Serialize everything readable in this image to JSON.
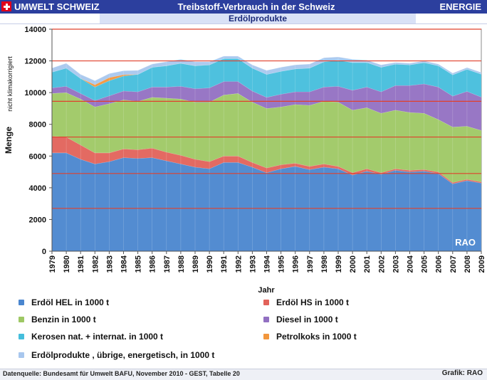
{
  "header": {
    "brand": "UMWELT SCHWEIZ",
    "title": "Treibstoff-Verbrauch in der Schweiz",
    "section": "ENERGIE",
    "subtitle": "Erdölprodukte"
  },
  "footer": {
    "source": "Datenquelle: Bundesamt für Umwelt BAFU, November 2010 - GEST, Tabelle 20",
    "credit": "Grafik: RAO"
  },
  "colors": {
    "brand_bar": "#2c3f9e",
    "hel": "#4a86cf",
    "hs": "#e2625a",
    "benzin": "#9ec864",
    "diesel": "#9270c2",
    "kerosen": "#45bedc",
    "petrolkoks": "#f2963c",
    "uebrige": "#a8c7ee",
    "ref_lines": "#e0402c"
  },
  "chart_data": {
    "type": "area",
    "stacked": true,
    "title": "Erdölprodukte",
    "ylabel": "Menge",
    "ylabel_note": "nicht klimakorrigiert",
    "xlabel": "Jahr",
    "ylim": [
      0,
      14000
    ],
    "yticks": [
      0,
      2000,
      4000,
      6000,
      8000,
      10000,
      12000,
      14000
    ],
    "watermark": "RAO",
    "reference_lines": [
      2700,
      4900,
      7200,
      9450,
      12000,
      14000
    ],
    "x": [
      "1979",
      "1980",
      "1981",
      "1982",
      "1983",
      "1984",
      "1985",
      "1986",
      "1987",
      "1988",
      "1989",
      "1990",
      "1991",
      "1992",
      "1993",
      "1994",
      "1995",
      "1996",
      "1997",
      "1998",
      "1999",
      "2000",
      "2001",
      "2002",
      "2003",
      "2004",
      "2005",
      "2006",
      "2007",
      "2008",
      "2009"
    ],
    "series": [
      {
        "name": "Erdöl HEL in 1000 t",
        "values": [
          6200,
          6200,
          5800,
          5500,
          5650,
          5900,
          5850,
          5900,
          5700,
          5500,
          5300,
          5200,
          5600,
          5600,
          5300,
          4950,
          5200,
          5350,
          5150,
          5300,
          5200,
          4800,
          5050,
          4850,
          5100,
          5000,
          5050,
          4900,
          4250,
          4450,
          4300
        ]
      },
      {
        "name": "Erdöl HS in 1000 t",
        "values": [
          1050,
          1000,
          900,
          700,
          550,
          550,
          550,
          600,
          550,
          550,
          500,
          450,
          400,
          400,
          300,
          300,
          250,
          200,
          200,
          200,
          150,
          150,
          150,
          100,
          100,
          100,
          100,
          100,
          80,
          80,
          70
        ]
      },
      {
        "name": "Benzin in 1000 t",
        "values": [
          2700,
          2800,
          2900,
          2900,
          3100,
          3100,
          3050,
          3200,
          3400,
          3550,
          3600,
          3750,
          3850,
          3950,
          3800,
          3750,
          3650,
          3700,
          3850,
          3950,
          4050,
          3950,
          3850,
          3750,
          3700,
          3650,
          3550,
          3300,
          3500,
          3350,
          3250
        ]
      },
      {
        "name": "Diesel in 1000 t",
        "values": [
          350,
          400,
          350,
          400,
          500,
          550,
          600,
          650,
          700,
          800,
          850,
          900,
          850,
          750,
          700,
          700,
          800,
          800,
          850,
          900,
          1000,
          1250,
          1300,
          1350,
          1550,
          1700,
          1850,
          2050,
          1950,
          2200,
          2100
        ]
      },
      {
        "name": "Kerosen nat.  + internat. in 1000 t",
        "values": [
          1000,
          1150,
          950,
          850,
          950,
          950,
          1100,
          1250,
          1350,
          1450,
          1450,
          1450,
          1450,
          1450,
          1450,
          1450,
          1450,
          1450,
          1500,
          1600,
          1650,
          1750,
          1550,
          1550,
          1350,
          1300,
          1350,
          1350,
          1350,
          1400,
          1450
        ]
      },
      {
        "name": "Petrolkoks in 1000 t",
        "values": [
          0,
          0,
          0,
          150,
          200,
          80,
          0,
          0,
          0,
          0,
          0,
          0,
          0,
          0,
          0,
          0,
          0,
          0,
          0,
          0,
          0,
          0,
          0,
          0,
          0,
          0,
          0,
          0,
          0,
          0,
          0
        ]
      },
      {
        "name": "Erdölprodukte , übrige,  energetisch, in 1000 t",
        "values": [
          250,
          300,
          250,
          250,
          250,
          250,
          250,
          200,
          250,
          250,
          250,
          200,
          150,
          150,
          200,
          250,
          250,
          250,
          250,
          250,
          200,
          200,
          150,
          150,
          100,
          100,
          100,
          100,
          100,
          100,
          100
        ]
      }
    ]
  }
}
